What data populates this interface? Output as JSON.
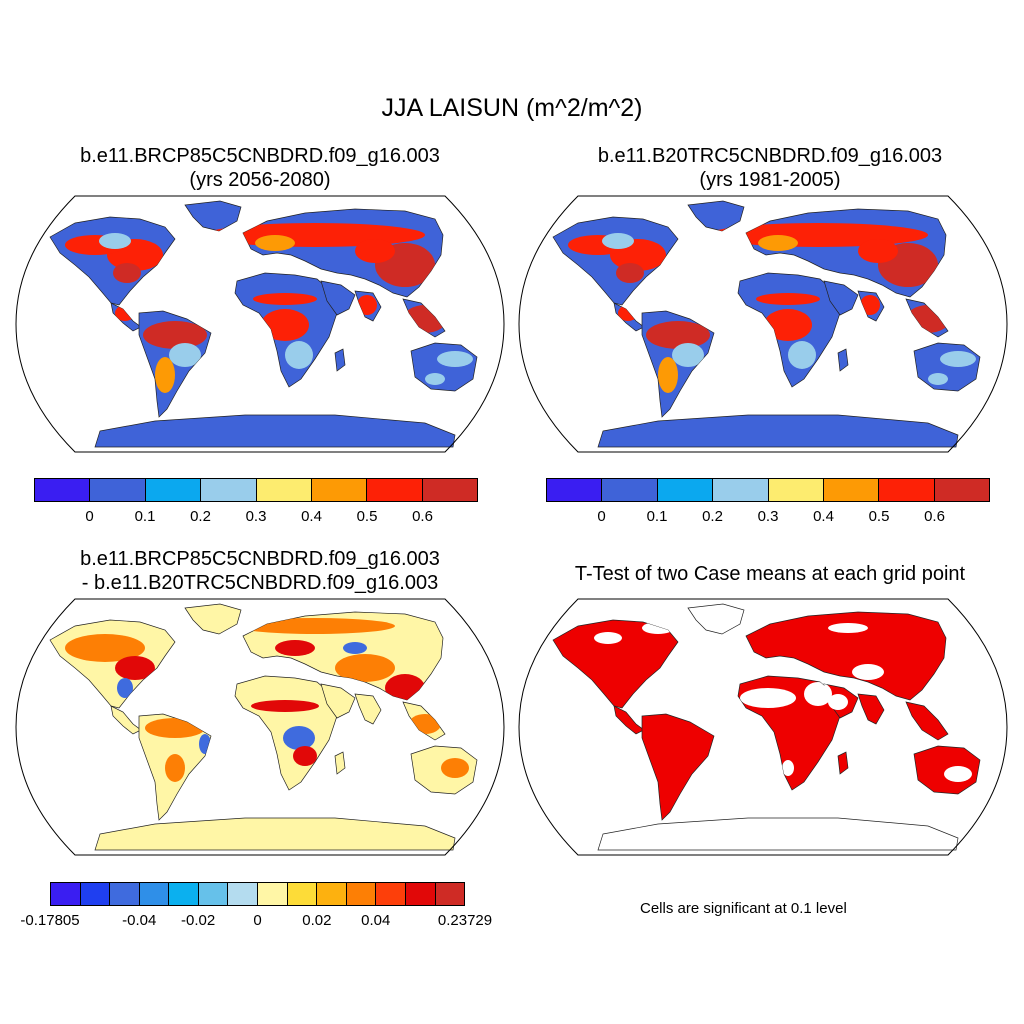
{
  "title": "JJA LAISUN (m^2/m^2)",
  "panels": {
    "top_left": {
      "title_line1": "b.e11.BRCP85C5CNBDRD.f09_g16.003",
      "title_line2": "(yrs 2056-2080)"
    },
    "top_right": {
      "title_line1": "b.e11.B20TRC5CNBDRD.f09_g16.003",
      "title_line2": "(yrs 1981-2005)"
    },
    "bottom_left": {
      "title_line1": "b.e11.BRCP85C5CNBDRD.f09_g16.003",
      "title_line2": "- b.e11.B20TRC5CNBDRD.f09_g16.003"
    },
    "bottom_right": {
      "title_line1": "T-Test of two Case means at each grid point",
      "note": "Cells are significant at 0.1 level"
    }
  },
  "colorbar_abs": {
    "colors": [
      "#3a1ef2",
      "#3f63d8",
      "#0ba8ef",
      "#99cdeb",
      "#fdec6f",
      "#fd9a05",
      "#fd2106",
      "#cf2b25"
    ],
    "ticks": [
      "0",
      "0.1",
      "0.2",
      "0.3",
      "0.4",
      "0.5",
      "0.6"
    ]
  },
  "colorbar_diff": {
    "colors": [
      "#3a1ef2",
      "#1f3ff0",
      "#3f6bde",
      "#2f8fe8",
      "#0bb0ef",
      "#66c1ea",
      "#b4dcef",
      "#fff6a6",
      "#fddc38",
      "#fdb10f",
      "#fd7f05",
      "#fd3f0a",
      "#e10808",
      "#cf2b25"
    ],
    "ticks": [
      "-0.17805",
      "-0.04",
      "-0.02",
      "0",
      "0.02",
      "0.04",
      "0.23729"
    ]
  },
  "map_colors": {
    "land_base": "#3f63d8",
    "land_mid": "#99cdeb",
    "land_warm": "#fd9a05",
    "land_hot": "#fd2106",
    "land_dark": "#cf2b25",
    "diff_base": "#fff6a6",
    "diff_up": "#fd7f05",
    "diff_hot": "#e10808",
    "diff_down": "#3f6bde",
    "sig": "#ee0000"
  }
}
